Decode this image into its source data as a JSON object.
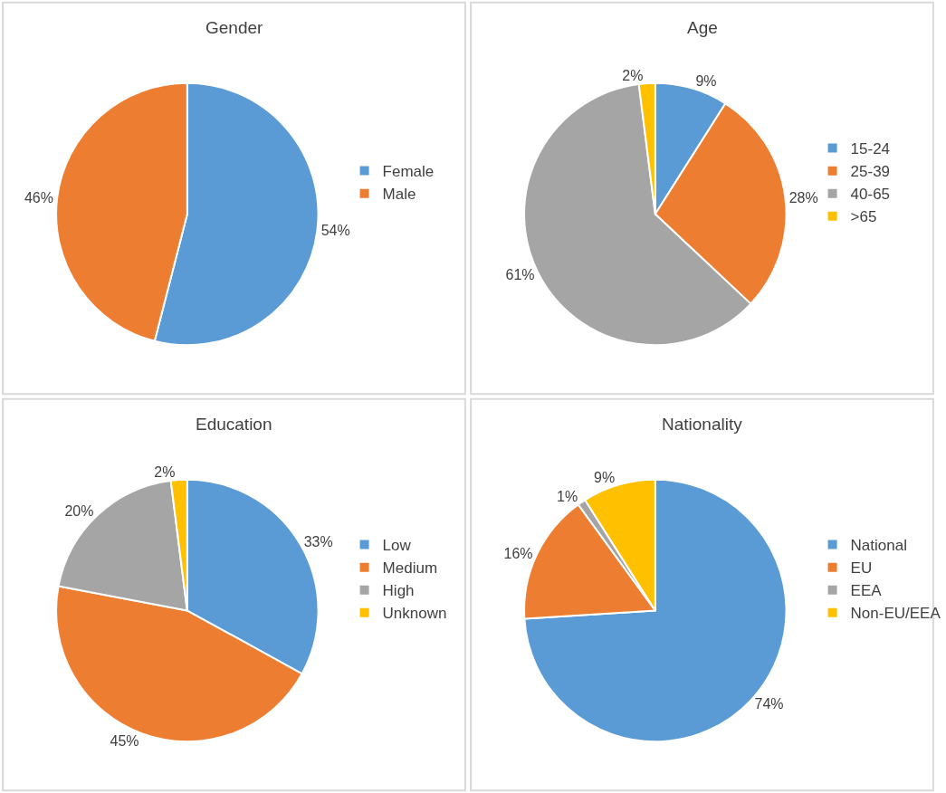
{
  "chart_data": [
    {
      "type": "pie",
      "title": "Gender",
      "categories": [
        "Female",
        "Male"
      ],
      "values": [
        54,
        46
      ],
      "value_labels": [
        "54%",
        "46%"
      ],
      "colors": [
        "#5b9bd5",
        "#ed7d31"
      ],
      "legend": "right"
    },
    {
      "type": "pie",
      "title": "Age",
      "categories": [
        "15-24",
        "25-39",
        "40-65",
        ">65"
      ],
      "values": [
        9,
        28,
        61,
        2
      ],
      "value_labels": [
        "9%",
        "28%",
        "61%",
        "2%"
      ],
      "colors": [
        "#5b9bd5",
        "#ed7d31",
        "#a5a5a5",
        "#ffc000"
      ],
      "legend": "right"
    },
    {
      "type": "pie",
      "title": "Education",
      "categories": [
        "Low",
        "Medium",
        "High",
        "Unknown"
      ],
      "values": [
        33,
        45,
        20,
        2
      ],
      "value_labels": [
        "33%",
        "45%",
        "20%",
        "2%"
      ],
      "colors": [
        "#5b9bd5",
        "#ed7d31",
        "#a5a5a5",
        "#ffc000"
      ],
      "legend": "right"
    },
    {
      "type": "pie",
      "title": "Nationality",
      "categories": [
        "National",
        "EU",
        "EEA",
        "Non-EU/EEA"
      ],
      "values": [
        74,
        16,
        1,
        9
      ],
      "value_labels": [
        "74%",
        "16%",
        "1%",
        "9%"
      ],
      "colors": [
        "#5b9bd5",
        "#ed7d31",
        "#a5a5a5",
        "#ffc000"
      ],
      "legend": "right"
    }
  ]
}
